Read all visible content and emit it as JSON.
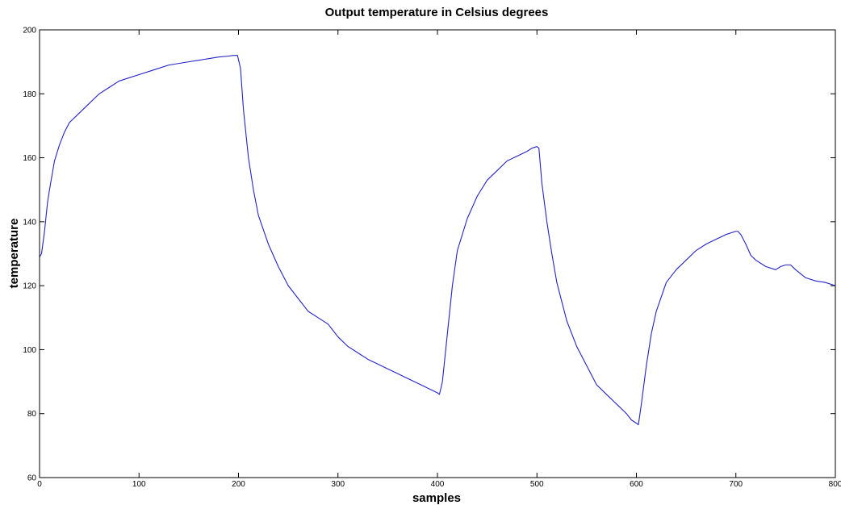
{
  "chart_data": {
    "type": "line",
    "title": "Output temperature in Celsius degrees",
    "xlabel": "samples",
    "ylabel": "temperature",
    "xlim": [
      0,
      800
    ],
    "ylim": [
      60,
      200
    ],
    "xticks": [
      0,
      100,
      200,
      300,
      400,
      500,
      600,
      700,
      800
    ],
    "yticks": [
      60,
      80,
      100,
      120,
      140,
      160,
      180,
      200
    ],
    "grid": false,
    "colors": {
      "line": "#2323c8",
      "axes": "#000000",
      "background": "#ffffff"
    },
    "series": [
      {
        "x": [
          0,
          2,
          5,
          8,
          10,
          15,
          20,
          25,
          30,
          40,
          50,
          60,
          70,
          80,
          90,
          100,
          110,
          120,
          130,
          140,
          150,
          160,
          170,
          180,
          190,
          195,
          199,
          202,
          205,
          210,
          215,
          220,
          230,
          240,
          250,
          260,
          270,
          280,
          290,
          300,
          310,
          320,
          330,
          340,
          350,
          360,
          370,
          380,
          390,
          400,
          402,
          405,
          410,
          415,
          420,
          430,
          440,
          450,
          460,
          470,
          480,
          490,
          495,
          500,
          502,
          505,
          510,
          515,
          520,
          530,
          540,
          550,
          560,
          570,
          580,
          590,
          595,
          600,
          602,
          605,
          610,
          615,
          620,
          630,
          640,
          650,
          660,
          670,
          680,
          690,
          700,
          702,
          705,
          710,
          715,
          720,
          730,
          740,
          745,
          750,
          755,
          760,
          770,
          780,
          790,
          800
        ],
        "y": [
          129,
          130,
          137,
          146,
          150,
          159,
          164,
          168,
          171,
          174,
          177,
          180,
          182,
          184,
          185,
          186,
          187,
          188,
          189,
          189.5,
          190,
          190.5,
          191,
          191.5,
          191.8,
          192,
          192,
          188,
          175,
          160,
          150,
          142,
          133,
          126,
          120,
          116,
          112,
          110,
          108,
          104,
          101,
          99,
          97,
          95.5,
          94,
          92.5,
          91,
          89.5,
          88,
          86.5,
          86,
          90,
          105,
          120,
          131,
          141,
          148,
          153,
          156,
          159,
          160.5,
          162,
          163,
          163.5,
          163,
          152,
          140,
          130,
          121,
          109,
          101,
          95,
          89,
          86,
          83,
          80,
          78,
          77,
          76.5,
          83,
          95,
          105,
          112,
          121,
          125,
          128,
          131,
          133,
          134.5,
          136,
          137,
          137,
          136,
          133,
          129.5,
          128,
          126,
          125,
          126,
          126.5,
          126.5,
          125,
          122.5,
          121.5,
          121,
          120
        ]
      }
    ]
  }
}
